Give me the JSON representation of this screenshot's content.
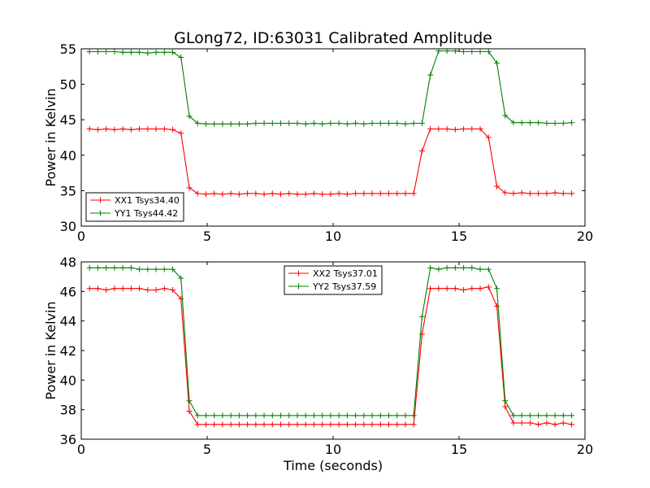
{
  "chart_data": [
    {
      "type": "line",
      "title": "GLong72, ID:63031 Calibrated Amplitude",
      "xlabel": "",
      "ylabel": "Power in Kelvin",
      "xlim": [
        0,
        20
      ],
      "ylim": [
        30,
        55
      ],
      "xticks": [
        0,
        5,
        10,
        15,
        20
      ],
      "yticks": [
        30,
        35,
        40,
        45,
        50,
        55
      ],
      "legend_position": "lower-left",
      "x": [
        0.33,
        0.66,
        0.99,
        1.32,
        1.65,
        1.98,
        2.31,
        2.64,
        2.97,
        3.3,
        3.63,
        3.96,
        4.29,
        4.62,
        4.95,
        5.28,
        5.61,
        5.94,
        6.27,
        6.6,
        6.93,
        7.26,
        7.59,
        7.92,
        8.25,
        8.58,
        8.91,
        9.24,
        9.57,
        9.9,
        10.23,
        10.56,
        10.89,
        11.22,
        11.55,
        11.88,
        12.21,
        12.54,
        12.87,
        13.2,
        13.53,
        13.86,
        14.19,
        14.52,
        14.85,
        15.18,
        15.51,
        15.84,
        16.17,
        16.5,
        16.83,
        17.16,
        17.49,
        17.82,
        18.15,
        18.48,
        18.81,
        19.14,
        19.47
      ],
      "series": [
        {
          "name": "XX1 Tsys34.40",
          "color": "#ff0000",
          "values": [
            43.7,
            43.6,
            43.7,
            43.6,
            43.7,
            43.6,
            43.7,
            43.7,
            43.7,
            43.7,
            43.6,
            43.1,
            35.4,
            34.6,
            34.5,
            34.6,
            34.5,
            34.6,
            34.5,
            34.6,
            34.6,
            34.5,
            34.6,
            34.5,
            34.6,
            34.5,
            34.5,
            34.6,
            34.5,
            34.5,
            34.6,
            34.5,
            34.6,
            34.6,
            34.6,
            34.6,
            34.6,
            34.6,
            34.6,
            34.6,
            40.6,
            43.7,
            43.7,
            43.7,
            43.6,
            43.7,
            43.7,
            43.7,
            42.5,
            35.6,
            34.7,
            34.6,
            34.7,
            34.6,
            34.6,
            34.6,
            34.7,
            34.6,
            34.6
          ]
        },
        {
          "name": "YY1 Tsys44.42",
          "color": "#008000",
          "values": [
            54.6,
            54.6,
            54.6,
            54.6,
            54.5,
            54.5,
            54.5,
            54.4,
            54.5,
            54.5,
            54.5,
            53.8,
            45.5,
            44.5,
            44.4,
            44.4,
            44.4,
            44.4,
            44.4,
            44.4,
            44.5,
            44.5,
            44.5,
            44.5,
            44.5,
            44.5,
            44.4,
            44.5,
            44.4,
            44.5,
            44.5,
            44.4,
            44.5,
            44.4,
            44.5,
            44.5,
            44.5,
            44.5,
            44.4,
            44.5,
            44.5,
            51.3,
            54.7,
            54.7,
            54.7,
            54.6,
            54.6,
            54.6,
            54.6,
            53.0,
            45.6,
            44.6,
            44.6,
            44.6,
            44.6,
            44.5,
            44.5,
            44.5,
            44.6
          ]
        }
      ]
    },
    {
      "type": "line",
      "title": "",
      "xlabel": "Time (seconds)",
      "ylabel": "Power in Kelvin",
      "xlim": [
        0,
        20
      ],
      "ylim": [
        36,
        48
      ],
      "xticks": [
        0,
        5,
        10,
        15,
        20
      ],
      "yticks": [
        36,
        38,
        40,
        42,
        44,
        46,
        48
      ],
      "legend_position": "top-center",
      "x": [
        0.33,
        0.66,
        0.99,
        1.32,
        1.65,
        1.98,
        2.31,
        2.64,
        2.97,
        3.3,
        3.63,
        3.96,
        4.29,
        4.62,
        4.95,
        5.28,
        5.61,
        5.94,
        6.27,
        6.6,
        6.93,
        7.26,
        7.59,
        7.92,
        8.25,
        8.58,
        8.91,
        9.24,
        9.57,
        9.9,
        10.23,
        10.56,
        10.89,
        11.22,
        11.55,
        11.88,
        12.21,
        12.54,
        12.87,
        13.2,
        13.53,
        13.86,
        14.19,
        14.52,
        14.85,
        15.18,
        15.51,
        15.84,
        16.17,
        16.5,
        16.83,
        17.16,
        17.49,
        17.82,
        18.15,
        18.48,
        18.81,
        19.14,
        19.47
      ],
      "series": [
        {
          "name": "XX2 Tsys37.01",
          "color": "#ff0000",
          "values": [
            46.2,
            46.2,
            46.1,
            46.2,
            46.2,
            46.2,
            46.2,
            46.1,
            46.1,
            46.2,
            46.1,
            45.5,
            37.9,
            37.0,
            37.0,
            37.0,
            37.0,
            37.0,
            37.0,
            37.0,
            37.0,
            37.0,
            37.0,
            37.0,
            37.0,
            37.0,
            37.0,
            37.0,
            37.0,
            37.0,
            37.0,
            37.0,
            37.0,
            37.0,
            37.0,
            37.0,
            37.0,
            37.0,
            37.0,
            37.0,
            43.1,
            46.2,
            46.2,
            46.2,
            46.2,
            46.1,
            46.2,
            46.2,
            46.3,
            45.0,
            38.2,
            37.1,
            37.1,
            37.1,
            37.0,
            37.1,
            37.0,
            37.1,
            37.0
          ]
        },
        {
          "name": "YY2 Tsys37.59",
          "color": "#008000",
          "values": [
            47.6,
            47.6,
            47.6,
            47.6,
            47.6,
            47.6,
            47.5,
            47.5,
            47.5,
            47.5,
            47.5,
            46.9,
            38.6,
            37.6,
            37.6,
            37.6,
            37.6,
            37.6,
            37.6,
            37.6,
            37.6,
            37.6,
            37.6,
            37.6,
            37.6,
            37.6,
            37.6,
            37.6,
            37.6,
            37.6,
            37.6,
            37.6,
            37.6,
            37.6,
            37.6,
            37.6,
            37.6,
            37.6,
            37.6,
            37.6,
            44.3,
            47.6,
            47.5,
            47.6,
            47.6,
            47.6,
            47.6,
            47.5,
            47.5,
            46.2,
            38.6,
            37.6,
            37.6,
            37.6,
            37.6,
            37.6,
            37.6,
            37.6,
            37.6
          ]
        }
      ]
    }
  ]
}
